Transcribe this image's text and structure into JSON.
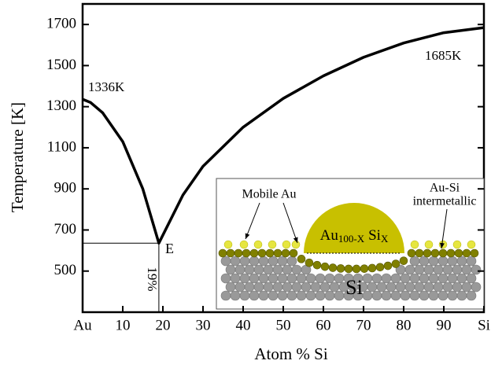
{
  "chart_data": {
    "type": "line",
    "x_label": "Atom % Si",
    "y_label": "Temperature [K]",
    "x": [
      0,
      2,
      5,
      10,
      15,
      19,
      25,
      30,
      40,
      50,
      60,
      70,
      80,
      90,
      100
    ],
    "values": [
      1336,
      1320,
      1270,
      1130,
      900,
      636,
      870,
      1010,
      1200,
      1340,
      1450,
      1540,
      1610,
      1660,
      1685
    ],
    "color": "#000000",
    "xlim": [
      0,
      100
    ],
    "ylim": [
      300,
      1800
    ],
    "xticks": [
      {
        "value": 0,
        "label": "Au"
      },
      10,
      20,
      30,
      40,
      50,
      60,
      70,
      80,
      90,
      {
        "value": 100,
        "label": "Si"
      }
    ],
    "yticks": [
      500,
      700,
      900,
      1100,
      1300,
      1500,
      1700
    ],
    "grid": false,
    "eutectic": {
      "x": 19,
      "y": 636
    },
    "annotations": [
      "1336K",
      "1685K",
      "E",
      "19%"
    ],
    "inset": {
      "mobile": "Mobile Au",
      "intermetallic": [
        "Au-Si",
        "intermetallic"
      ],
      "droplet": [
        "Au",
        "100-X",
        "Si",
        "X"
      ],
      "substrate": "Si"
    }
  }
}
